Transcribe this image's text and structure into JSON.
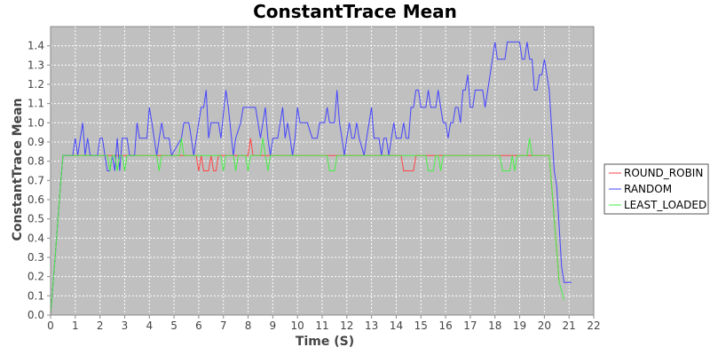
{
  "chart_data": {
    "type": "line",
    "title": "ConstantTrace Mean",
    "xlabel": "Time (S)",
    "ylabel": "ConstantTrace Mean",
    "xlim": [
      0,
      22
    ],
    "ylim": [
      0,
      1.5
    ],
    "x_ticks": [
      0,
      1,
      2,
      3,
      4,
      5,
      6,
      7,
      8,
      9,
      10,
      11,
      12,
      13,
      14,
      15,
      16,
      17,
      18,
      19,
      20,
      21,
      22
    ],
    "y_ticks": [
      0.0,
      0.1,
      0.2,
      0.3,
      0.4,
      0.5,
      0.6,
      0.7,
      0.8,
      0.9,
      1.0,
      1.1,
      1.2,
      1.3,
      1.4
    ],
    "grid": true,
    "legend_position": "right",
    "series": [
      {
        "name": "ROUND_ROBIN",
        "color": "#ff4444",
        "points": [
          [
            0,
            0
          ],
          [
            0.2,
            0.33
          ],
          [
            0.4,
            0.67
          ],
          [
            0.5,
            0.83
          ],
          [
            5.9,
            0.83
          ],
          [
            6.0,
            0.75
          ],
          [
            6.1,
            0.83
          ],
          [
            6.2,
            0.75
          ],
          [
            6.4,
            0.75
          ],
          [
            6.5,
            0.83
          ],
          [
            6.6,
            0.75
          ],
          [
            6.7,
            0.75
          ],
          [
            6.8,
            0.83
          ],
          [
            8.0,
            0.83
          ],
          [
            8.1,
            0.92
          ],
          [
            8.2,
            0.83
          ],
          [
            14.2,
            0.83
          ],
          [
            14.3,
            0.75
          ],
          [
            14.7,
            0.75
          ],
          [
            14.8,
            0.83
          ],
          [
            20.2,
            0.83
          ],
          [
            20.4,
            0.5
          ],
          [
            20.6,
            0.17
          ]
        ]
      },
      {
        "name": "RANDOM",
        "color": "#4444ff",
        "points": [
          [
            0,
            0
          ],
          [
            0.2,
            0.33
          ],
          [
            0.4,
            0.67
          ],
          [
            0.5,
            0.83
          ],
          [
            0.9,
            0.83
          ],
          [
            1.0,
            0.92
          ],
          [
            1.1,
            0.83
          ],
          [
            1.3,
            1.0
          ],
          [
            1.4,
            0.83
          ],
          [
            1.5,
            0.92
          ],
          [
            1.6,
            0.83
          ],
          [
            1.9,
            0.83
          ],
          [
            2.0,
            0.92
          ],
          [
            2.1,
            0.92
          ],
          [
            2.2,
            0.83
          ],
          [
            2.3,
            0.75
          ],
          [
            2.4,
            0.75
          ],
          [
            2.5,
            0.83
          ],
          [
            2.6,
            0.75
          ],
          [
            2.7,
            0.92
          ],
          [
            2.8,
            0.75
          ],
          [
            2.9,
            0.92
          ],
          [
            3.1,
            0.92
          ],
          [
            3.2,
            0.83
          ],
          [
            3.4,
            0.83
          ],
          [
            3.5,
            1.0
          ],
          [
            3.6,
            0.92
          ],
          [
            3.9,
            0.92
          ],
          [
            4.0,
            1.08
          ],
          [
            4.1,
            1.0
          ],
          [
            4.3,
            0.83
          ],
          [
            4.4,
            0.92
          ],
          [
            4.5,
            1.0
          ],
          [
            4.6,
            0.92
          ],
          [
            4.8,
            0.92
          ],
          [
            4.9,
            0.83
          ],
          [
            5.3,
            0.92
          ],
          [
            5.4,
            1.0
          ],
          [
            5.6,
            1.0
          ],
          [
            5.7,
            0.92
          ],
          [
            5.8,
            0.83
          ],
          [
            6.0,
            1.0
          ],
          [
            6.1,
            1.08
          ],
          [
            6.2,
            1.08
          ],
          [
            6.3,
            1.17
          ],
          [
            6.4,
            0.92
          ],
          [
            6.5,
            1.0
          ],
          [
            6.8,
            1.0
          ],
          [
            6.9,
            0.92
          ],
          [
            7.1,
            1.17
          ],
          [
            7.2,
            1.08
          ],
          [
            7.4,
            0.83
          ],
          [
            7.5,
            0.92
          ],
          [
            7.7,
            1.0
          ],
          [
            7.8,
            1.08
          ],
          [
            8.3,
            1.08
          ],
          [
            8.4,
            1.0
          ],
          [
            8.5,
            0.92
          ],
          [
            8.6,
            1.0
          ],
          [
            8.7,
            1.08
          ],
          [
            8.8,
            0.92
          ],
          [
            8.9,
            0.83
          ],
          [
            9.0,
            0.92
          ],
          [
            9.2,
            0.92
          ],
          [
            9.3,
            1.0
          ],
          [
            9.4,
            1.08
          ],
          [
            9.5,
            0.92
          ],
          [
            9.6,
            1.0
          ],
          [
            9.7,
            0.92
          ],
          [
            9.8,
            0.83
          ],
          [
            9.9,
            0.92
          ],
          [
            10.0,
            1.08
          ],
          [
            10.1,
            1.0
          ],
          [
            10.3,
            1.0
          ],
          [
            10.4,
            1.0
          ],
          [
            10.6,
            0.92
          ],
          [
            10.8,
            0.92
          ],
          [
            10.9,
            1.0
          ],
          [
            11.1,
            1.0
          ],
          [
            11.2,
            1.08
          ],
          [
            11.3,
            1.0
          ],
          [
            11.5,
            1.0
          ],
          [
            11.6,
            1.17
          ],
          [
            11.7,
            1.0
          ],
          [
            11.8,
            0.92
          ],
          [
            11.9,
            0.83
          ],
          [
            12.0,
            0.92
          ],
          [
            12.1,
            1.0
          ],
          [
            12.2,
            0.92
          ],
          [
            12.3,
            0.92
          ],
          [
            12.4,
            1.0
          ],
          [
            12.5,
            0.92
          ],
          [
            12.7,
            0.83
          ],
          [
            12.8,
            0.92
          ],
          [
            13.0,
            1.08
          ],
          [
            13.1,
            0.92
          ],
          [
            13.3,
            0.92
          ],
          [
            13.4,
            0.83
          ],
          [
            13.5,
            0.92
          ],
          [
            13.6,
            0.92
          ],
          [
            13.7,
            0.83
          ],
          [
            13.9,
            1.0
          ],
          [
            14.0,
            0.92
          ],
          [
            14.2,
            0.92
          ],
          [
            14.3,
            1.0
          ],
          [
            14.4,
            0.92
          ],
          [
            14.5,
            0.92
          ],
          [
            14.6,
            1.08
          ],
          [
            14.7,
            1.08
          ],
          [
            14.8,
            1.17
          ],
          [
            14.9,
            1.17
          ],
          [
            15.0,
            1.08
          ],
          [
            15.2,
            1.08
          ],
          [
            15.3,
            1.17
          ],
          [
            15.4,
            1.08
          ],
          [
            15.6,
            1.08
          ],
          [
            15.7,
            1.17
          ],
          [
            15.8,
            1.08
          ],
          [
            15.9,
            1.0
          ],
          [
            16.0,
            1.0
          ],
          [
            16.1,
            0.92
          ],
          [
            16.2,
            1.0
          ],
          [
            16.3,
            1.0
          ],
          [
            16.4,
            1.08
          ],
          [
            16.5,
            1.08
          ],
          [
            16.6,
            1.0
          ],
          [
            16.7,
            1.17
          ],
          [
            16.8,
            1.17
          ],
          [
            16.9,
            1.25
          ],
          [
            17.0,
            1.08
          ],
          [
            17.1,
            1.08
          ],
          [
            17.2,
            1.17
          ],
          [
            17.5,
            1.17
          ],
          [
            17.6,
            1.08
          ],
          [
            17.8,
            1.25
          ],
          [
            18.0,
            1.42
          ],
          [
            18.1,
            1.33
          ],
          [
            18.4,
            1.33
          ],
          [
            18.5,
            1.42
          ],
          [
            19.0,
            1.42
          ],
          [
            19.1,
            1.33
          ],
          [
            19.2,
            1.33
          ],
          [
            19.3,
            1.42
          ],
          [
            19.4,
            1.33
          ],
          [
            19.5,
            1.33
          ],
          [
            19.6,
            1.17
          ],
          [
            19.7,
            1.17
          ],
          [
            19.8,
            1.25
          ],
          [
            19.9,
            1.25
          ],
          [
            20.0,
            1.33
          ],
          [
            20.2,
            1.17
          ],
          [
            20.4,
            0.75
          ],
          [
            20.5,
            0.67
          ],
          [
            20.7,
            0.25
          ],
          [
            20.8,
            0.17
          ],
          [
            21.1,
            0.17
          ]
        ]
      },
      {
        "name": "LEAST_LOADED",
        "color": "#44ee44",
        "points": [
          [
            0,
            0
          ],
          [
            0.2,
            0.33
          ],
          [
            0.4,
            0.67
          ],
          [
            0.5,
            0.83
          ],
          [
            2.3,
            0.83
          ],
          [
            2.4,
            0.75
          ],
          [
            2.5,
            0.83
          ],
          [
            2.6,
            0.83
          ],
          [
            2.7,
            0.75
          ],
          [
            2.8,
            0.83
          ],
          [
            2.9,
            0.83
          ],
          [
            3.0,
            0.75
          ],
          [
            3.1,
            0.83
          ],
          [
            4.3,
            0.83
          ],
          [
            4.4,
            0.75
          ],
          [
            4.5,
            0.83
          ],
          [
            5.2,
            0.83
          ],
          [
            5.3,
            0.92
          ],
          [
            5.4,
            0.83
          ],
          [
            6.9,
            0.83
          ],
          [
            7.0,
            0.75
          ],
          [
            7.1,
            0.83
          ],
          [
            7.4,
            0.83
          ],
          [
            7.5,
            0.75
          ],
          [
            7.6,
            0.83
          ],
          [
            7.9,
            0.83
          ],
          [
            8.0,
            0.75
          ],
          [
            8.1,
            0.83
          ],
          [
            8.5,
            0.83
          ],
          [
            8.6,
            0.92
          ],
          [
            8.7,
            0.83
          ],
          [
            8.8,
            0.75
          ],
          [
            8.9,
            0.83
          ],
          [
            11.2,
            0.83
          ],
          [
            11.3,
            0.75
          ],
          [
            11.5,
            0.75
          ],
          [
            11.6,
            0.83
          ],
          [
            15.2,
            0.83
          ],
          [
            15.3,
            0.75
          ],
          [
            15.5,
            0.75
          ],
          [
            15.6,
            0.83
          ],
          [
            15.7,
            0.83
          ],
          [
            15.8,
            0.75
          ],
          [
            15.9,
            0.83
          ],
          [
            18.2,
            0.83
          ],
          [
            18.3,
            0.75
          ],
          [
            18.6,
            0.75
          ],
          [
            18.7,
            0.83
          ],
          [
            18.8,
            0.75
          ],
          [
            18.9,
            0.83
          ],
          [
            19.3,
            0.83
          ],
          [
            19.4,
            0.92
          ],
          [
            19.5,
            0.83
          ],
          [
            20.2,
            0.83
          ],
          [
            20.4,
            0.5
          ],
          [
            20.6,
            0.17
          ],
          [
            20.8,
            0.08
          ]
        ]
      }
    ]
  },
  "style": {
    "plot_background": "#c0c0c0",
    "grid_color": "#ffffff"
  }
}
